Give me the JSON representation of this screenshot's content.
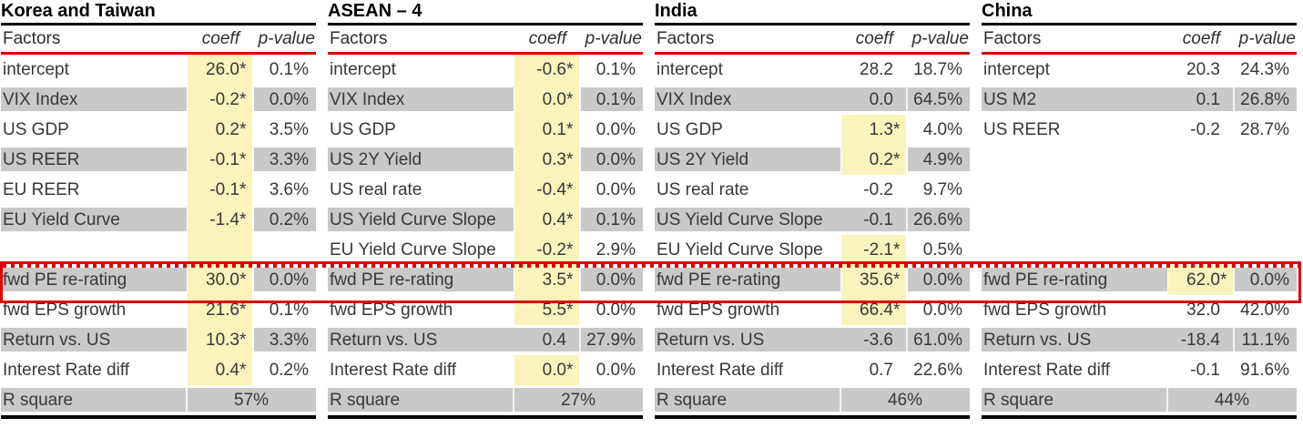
{
  "colors": {
    "row_shade": "#C9C9C9",
    "significant_highlight": "#FAF4BC",
    "header_rule_red": "#D90000",
    "emphasis_box_red": "#E00000",
    "table_rule_black": "#000000",
    "text": "#383838"
  },
  "emphasis_box": {
    "target_row": "fwd PE re-rating"
  },
  "chart_data": [
    {
      "type": "table",
      "title": "Korea and Taiwan",
      "columns": {
        "factor": "Factors",
        "coeff": "coeff",
        "pvalue": "p-value"
      },
      "rows": [
        {
          "factor": "intercept",
          "coeff": "26.0",
          "sig": true,
          "pvalue": "0.1%",
          "shaded": false,
          "highlight": true
        },
        {
          "factor": "VIX Index",
          "coeff": "-0.2",
          "sig": true,
          "pvalue": "0.0%",
          "shaded": true,
          "highlight": true
        },
        {
          "factor": "US GDP",
          "coeff": "0.2",
          "sig": true,
          "pvalue": "3.5%",
          "shaded": false,
          "highlight": true
        },
        {
          "factor": "US REER",
          "coeff": "-0.1",
          "sig": true,
          "pvalue": "3.3%",
          "shaded": true,
          "highlight": true
        },
        {
          "factor": "EU REER",
          "coeff": "-0.1",
          "sig": true,
          "pvalue": "3.6%",
          "shaded": false,
          "highlight": true
        },
        {
          "factor": "EU Yield Curve",
          "coeff": "-1.4",
          "sig": true,
          "pvalue": "0.2%",
          "shaded": true,
          "highlight": true
        },
        {
          "blank": true,
          "shaded": false,
          "highlight": true
        },
        {
          "factor": "fwd PE re-rating",
          "coeff": "30.0",
          "sig": true,
          "pvalue": "0.0%",
          "shaded": true,
          "highlight": true
        },
        {
          "factor": "fwd EPS growth",
          "coeff": "21.6",
          "sig": true,
          "pvalue": "0.1%",
          "shaded": false,
          "highlight": true
        },
        {
          "factor": "Return vs. US",
          "coeff": "10.3",
          "sig": true,
          "pvalue": "3.3%",
          "shaded": true,
          "highlight": true
        },
        {
          "factor": "Interest Rate diff",
          "coeff": "0.4",
          "sig": true,
          "pvalue": "0.2%",
          "shaded": false,
          "highlight": true
        }
      ],
      "r_square": {
        "label": "R square",
        "value": "57%"
      }
    },
    {
      "type": "table",
      "title": "ASEAN – 4",
      "columns": {
        "factor": "Factors",
        "coeff": "coeff",
        "pvalue": "p-value"
      },
      "rows": [
        {
          "factor": "intercept",
          "coeff": "-0.6",
          "sig": true,
          "pvalue": "0.1%",
          "shaded": false,
          "highlight": true
        },
        {
          "factor": "VIX Index",
          "coeff": "0.0",
          "sig": true,
          "pvalue": "0.1%",
          "shaded": true,
          "highlight": true
        },
        {
          "factor": "US GDP",
          "coeff": "0.1",
          "sig": true,
          "pvalue": "0.0%",
          "shaded": false,
          "highlight": true
        },
        {
          "factor": "US 2Y Yield",
          "coeff": "0.3",
          "sig": true,
          "pvalue": "0.0%",
          "shaded": true,
          "highlight": true
        },
        {
          "factor": "US real rate",
          "coeff": "-0.4",
          "sig": true,
          "pvalue": "0.0%",
          "shaded": false,
          "highlight": true
        },
        {
          "factor": "US Yield Curve Slope",
          "coeff": "0.4",
          "sig": true,
          "pvalue": "0.1%",
          "shaded": true,
          "highlight": true
        },
        {
          "factor": "EU Yield Curve Slope",
          "coeff": "-0.2",
          "sig": true,
          "pvalue": "2.9%",
          "shaded": false,
          "highlight": true
        },
        {
          "factor": "fwd PE re-rating",
          "coeff": "3.5",
          "sig": true,
          "pvalue": "0.0%",
          "shaded": true,
          "highlight": true
        },
        {
          "factor": "fwd EPS growth",
          "coeff": "5.5",
          "sig": true,
          "pvalue": "0.0%",
          "shaded": false,
          "highlight": true
        },
        {
          "factor": "Return vs. US",
          "coeff": "0.4",
          "sig": false,
          "pvalue": "27.9%",
          "shaded": true,
          "highlight": false
        },
        {
          "factor": "Interest Rate diff",
          "coeff": "0.0",
          "sig": true,
          "pvalue": "0.0%",
          "shaded": false,
          "highlight": true
        }
      ],
      "r_square": {
        "label": "R square",
        "value": "27%"
      }
    },
    {
      "type": "table",
      "title": "India",
      "columns": {
        "factor": "Factors",
        "coeff": "coeff",
        "pvalue": "p-value"
      },
      "rows": [
        {
          "factor": "intercept",
          "coeff": "28.2",
          "sig": false,
          "pvalue": "18.7%",
          "shaded": false,
          "highlight": false
        },
        {
          "factor": "VIX Index",
          "coeff": "0.0",
          "sig": false,
          "pvalue": "64.5%",
          "shaded": true,
          "highlight": false
        },
        {
          "factor": "US GDP",
          "coeff": "1.3",
          "sig": true,
          "pvalue": "4.0%",
          "shaded": false,
          "highlight": true
        },
        {
          "factor": "US 2Y Yield",
          "coeff": "0.2",
          "sig": true,
          "pvalue": "4.9%",
          "shaded": true,
          "highlight": true
        },
        {
          "factor": "US real rate",
          "coeff": "-0.2",
          "sig": false,
          "pvalue": "9.7%",
          "shaded": false,
          "highlight": false
        },
        {
          "factor": "US Yield Curve Slope",
          "coeff": "-0.1",
          "sig": false,
          "pvalue": "26.6%",
          "shaded": true,
          "highlight": false
        },
        {
          "factor": "EU Yield Curve Slope",
          "coeff": "-2.1",
          "sig": true,
          "pvalue": "0.5%",
          "shaded": false,
          "highlight": true
        },
        {
          "factor": "fwd PE re-rating",
          "coeff": "35.6",
          "sig": true,
          "pvalue": "0.0%",
          "shaded": true,
          "highlight": true
        },
        {
          "factor": "fwd EPS growth",
          "coeff": "66.4",
          "sig": true,
          "pvalue": "0.0%",
          "shaded": false,
          "highlight": true
        },
        {
          "factor": "Return vs. US",
          "coeff": "-3.6",
          "sig": false,
          "pvalue": "61.0%",
          "shaded": true,
          "highlight": false
        },
        {
          "factor": "Interest Rate diff",
          "coeff": "0.7",
          "sig": false,
          "pvalue": "22.6%",
          "shaded": false,
          "highlight": false
        }
      ],
      "r_square": {
        "label": "R square",
        "value": "46%"
      }
    },
    {
      "type": "table",
      "title": "China",
      "columns": {
        "factor": "Factors",
        "coeff": "coeff",
        "pvalue": "p-value"
      },
      "rows": [
        {
          "factor": "intercept",
          "coeff": "20.3",
          "sig": false,
          "pvalue": "24.3%",
          "shaded": false,
          "highlight": false
        },
        {
          "factor": "US M2",
          "coeff": "0.1",
          "sig": false,
          "pvalue": "26.8%",
          "shaded": true,
          "highlight": false
        },
        {
          "factor": "US REER",
          "coeff": "-0.2",
          "sig": false,
          "pvalue": "28.7%",
          "shaded": false,
          "highlight": false
        },
        {
          "blank": true,
          "shaded": false,
          "highlight": false
        },
        {
          "blank": true,
          "shaded": false,
          "highlight": false
        },
        {
          "blank": true,
          "shaded": false,
          "highlight": false
        },
        {
          "blank": true,
          "shaded": false,
          "highlight": false
        },
        {
          "factor": "fwd PE re-rating",
          "coeff": "62.0",
          "sig": true,
          "pvalue": "0.0%",
          "shaded": true,
          "highlight": true
        },
        {
          "factor": "fwd EPS growth",
          "coeff": "32.0",
          "sig": false,
          "pvalue": "42.0%",
          "shaded": false,
          "highlight": false
        },
        {
          "factor": "Return vs. US",
          "coeff": "-18.4",
          "sig": false,
          "pvalue": "11.1%",
          "shaded": true,
          "highlight": false
        },
        {
          "factor": "Interest Rate diff",
          "coeff": "-0.1",
          "sig": false,
          "pvalue": "91.6%",
          "shaded": false,
          "highlight": false
        }
      ],
      "r_square": {
        "label": "R square",
        "value": "44%"
      }
    }
  ]
}
